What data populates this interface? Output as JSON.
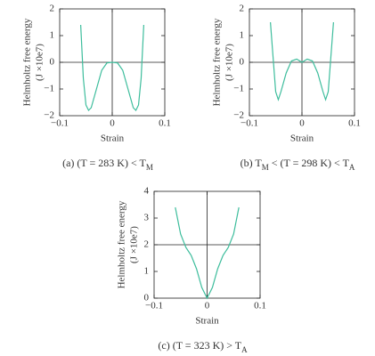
{
  "chart_data": [
    {
      "type": "line",
      "ylabel": [
        "Helmholtz free energy",
        "(J ×10e7)"
      ],
      "xlabel": "Strain",
      "caption": [
        "(a) (T = 283 K) < T",
        "M"
      ],
      "xlim": [
        -0.1,
        0.1
      ],
      "xticks": [
        {
          "value": -0.1,
          "label": "−0.1"
        },
        0,
        0.1
      ],
      "ylim": [
        -2,
        2
      ],
      "yticks": [
        {
          "value": -2,
          "label": "−2"
        },
        {
          "value": -1,
          "label": "−1"
        },
        0,
        1,
        2
      ],
      "hlines": [
        0
      ],
      "vlines": [
        0
      ],
      "color": "#3dbd9c",
      "x": [
        -0.06,
        -0.055,
        -0.05,
        -0.045,
        -0.04,
        -0.03,
        -0.02,
        -0.01,
        0,
        0.01,
        0.02,
        0.03,
        0.04,
        0.045,
        0.05,
        0.055,
        0.06
      ],
      "values": [
        1.4,
        -0.6,
        -1.6,
        -1.8,
        -1.7,
        -1.0,
        -0.3,
        -0.02,
        0,
        -0.02,
        -0.3,
        -1.0,
        -1.7,
        -1.8,
        -1.6,
        -0.6,
        1.4
      ]
    },
    {
      "type": "line",
      "ylabel": [
        "Helmholtz free energy",
        "(J ×10e7)"
      ],
      "xlabel": "Strain",
      "caption": [
        "(b) T",
        "M",
        " < (T = 298 K) < T",
        "A"
      ],
      "xlim": [
        -0.1,
        0.1
      ],
      "xticks": [
        {
          "value": -0.1,
          "label": "−0.1"
        },
        0,
        0.1
      ],
      "ylim": [
        -2,
        2
      ],
      "yticks": [
        {
          "value": -2,
          "label": "−2"
        },
        {
          "value": -1,
          "label": "−1"
        },
        0,
        1,
        2
      ],
      "hlines": [
        0
      ],
      "vlines": [
        0
      ],
      "color": "#3dbd9c",
      "x": [
        -0.06,
        -0.055,
        -0.05,
        -0.045,
        -0.04,
        -0.03,
        -0.02,
        -0.01,
        0,
        0.01,
        0.02,
        0.03,
        0.04,
        0.045,
        0.05,
        0.055,
        0.06
      ],
      "values": [
        1.5,
        0.2,
        -1.1,
        -1.4,
        -1.1,
        -0.4,
        0.05,
        0.12,
        0,
        0.12,
        0.05,
        -0.4,
        -1.1,
        -1.4,
        -1.1,
        0.2,
        1.5
      ]
    },
    {
      "type": "line",
      "ylabel": [
        "Helmholtz free energy",
        "(J ×10e7)"
      ],
      "xlabel": "Strain",
      "caption": [
        "(c) (T = 323 K) > T",
        "A"
      ],
      "xlim": [
        -0.1,
        0.1
      ],
      "xticks": [
        {
          "value": -0.1,
          "label": "−0.1"
        },
        0,
        0.1
      ],
      "ylim": [
        0,
        4
      ],
      "yticks": [
        0,
        1,
        2,
        3,
        4
      ],
      "hlines": [
        2
      ],
      "vlines": [
        0
      ],
      "color": "#3dbd9c",
      "x": [
        -0.06,
        -0.05,
        -0.04,
        -0.03,
        -0.02,
        -0.01,
        0,
        0.01,
        0.02,
        0.03,
        0.04,
        0.05,
        0.06
      ],
      "values": [
        3.4,
        2.4,
        1.9,
        1.6,
        1.1,
        0.4,
        0,
        0.4,
        1.1,
        1.6,
        1.9,
        2.4,
        3.4
      ]
    }
  ]
}
